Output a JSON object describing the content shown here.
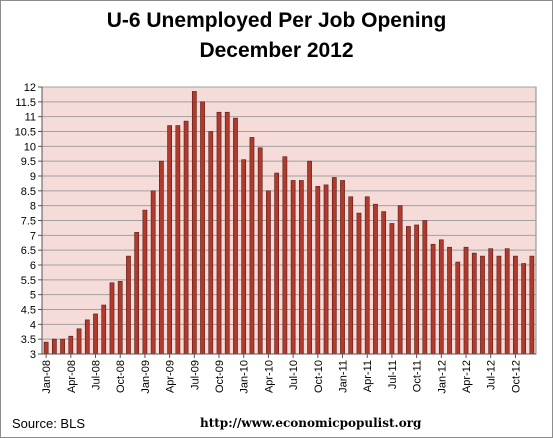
{
  "chart_data": {
    "type": "bar",
    "title": "U-6 Unemployed Per Job Opening",
    "subtitle": "December 2012",
    "xlabel": "",
    "ylabel": "",
    "ylim": [
      3,
      12
    ],
    "y_ticks": [
      "3",
      "3.5",
      "4",
      "4.5",
      "5",
      "5.5",
      "6",
      "6.5",
      "7",
      "7.5",
      "8",
      "8.5",
      "9",
      "9.5",
      "10",
      "10.5",
      "11",
      "11.5",
      "12"
    ],
    "x_tick_labels": [
      "Jan-08",
      "Apr-08",
      "Jul-08",
      "Oct-08",
      "Jan-09",
      "Apr-09",
      "Jul-09",
      "Oct-09",
      "Jan-10",
      "Apr-10",
      "Jul-10",
      "Oct-10",
      "Jan-11",
      "Apr-11",
      "Jul-11",
      "Oct-11",
      "Jan-12",
      "Apr-12",
      "Jul-12",
      "Oct-12"
    ],
    "categories": [
      "Jan-08",
      "Feb-08",
      "Mar-08",
      "Apr-08",
      "May-08",
      "Jun-08",
      "Jul-08",
      "Aug-08",
      "Sep-08",
      "Oct-08",
      "Nov-08",
      "Dec-08",
      "Jan-09",
      "Feb-09",
      "Mar-09",
      "Apr-09",
      "May-09",
      "Jun-09",
      "Jul-09",
      "Aug-09",
      "Sep-09",
      "Oct-09",
      "Nov-09",
      "Dec-09",
      "Jan-10",
      "Feb-10",
      "Mar-10",
      "Apr-10",
      "May-10",
      "Jun-10",
      "Jul-10",
      "Aug-10",
      "Sep-10",
      "Oct-10",
      "Nov-10",
      "Dec-10",
      "Jan-11",
      "Feb-11",
      "Mar-11",
      "Apr-11",
      "May-11",
      "Jun-11",
      "Jul-11",
      "Aug-11",
      "Sep-11",
      "Oct-11",
      "Nov-11",
      "Dec-11",
      "Jan-12",
      "Feb-12",
      "Mar-12",
      "Apr-12",
      "May-12",
      "Jun-12",
      "Jul-12",
      "Aug-12",
      "Sep-12",
      "Oct-12",
      "Nov-12",
      "Dec-12"
    ],
    "values": [
      3.4,
      3.5,
      3.5,
      3.6,
      3.85,
      4.15,
      4.35,
      4.65,
      5.4,
      5.45,
      6.3,
      7.1,
      7.85,
      8.5,
      9.5,
      10.7,
      10.7,
      10.85,
      11.85,
      11.5,
      10.5,
      11.15,
      11.15,
      10.95,
      9.55,
      10.3,
      9.95,
      8.5,
      9.1,
      9.65,
      8.85,
      8.85,
      9.5,
      8.65,
      8.7,
      8.95,
      8.85,
      8.3,
      7.75,
      8.3,
      8.05,
      7.8,
      7.4,
      8.0,
      7.3,
      7.35,
      7.5,
      6.7,
      6.85,
      6.6,
      6.1,
      6.6,
      6.4,
      6.3,
      6.55,
      6.3,
      6.55,
      6.3,
      6.05,
      6.3
    ],
    "bar_color": "#b03a2e",
    "bar_edge_color": "#5a1a12",
    "plot_background": "#f6dcd8",
    "grid": true,
    "legend": "none"
  },
  "footer": {
    "source": "Source:  BLS",
    "url": "http://www.economicpopulist.org"
  }
}
